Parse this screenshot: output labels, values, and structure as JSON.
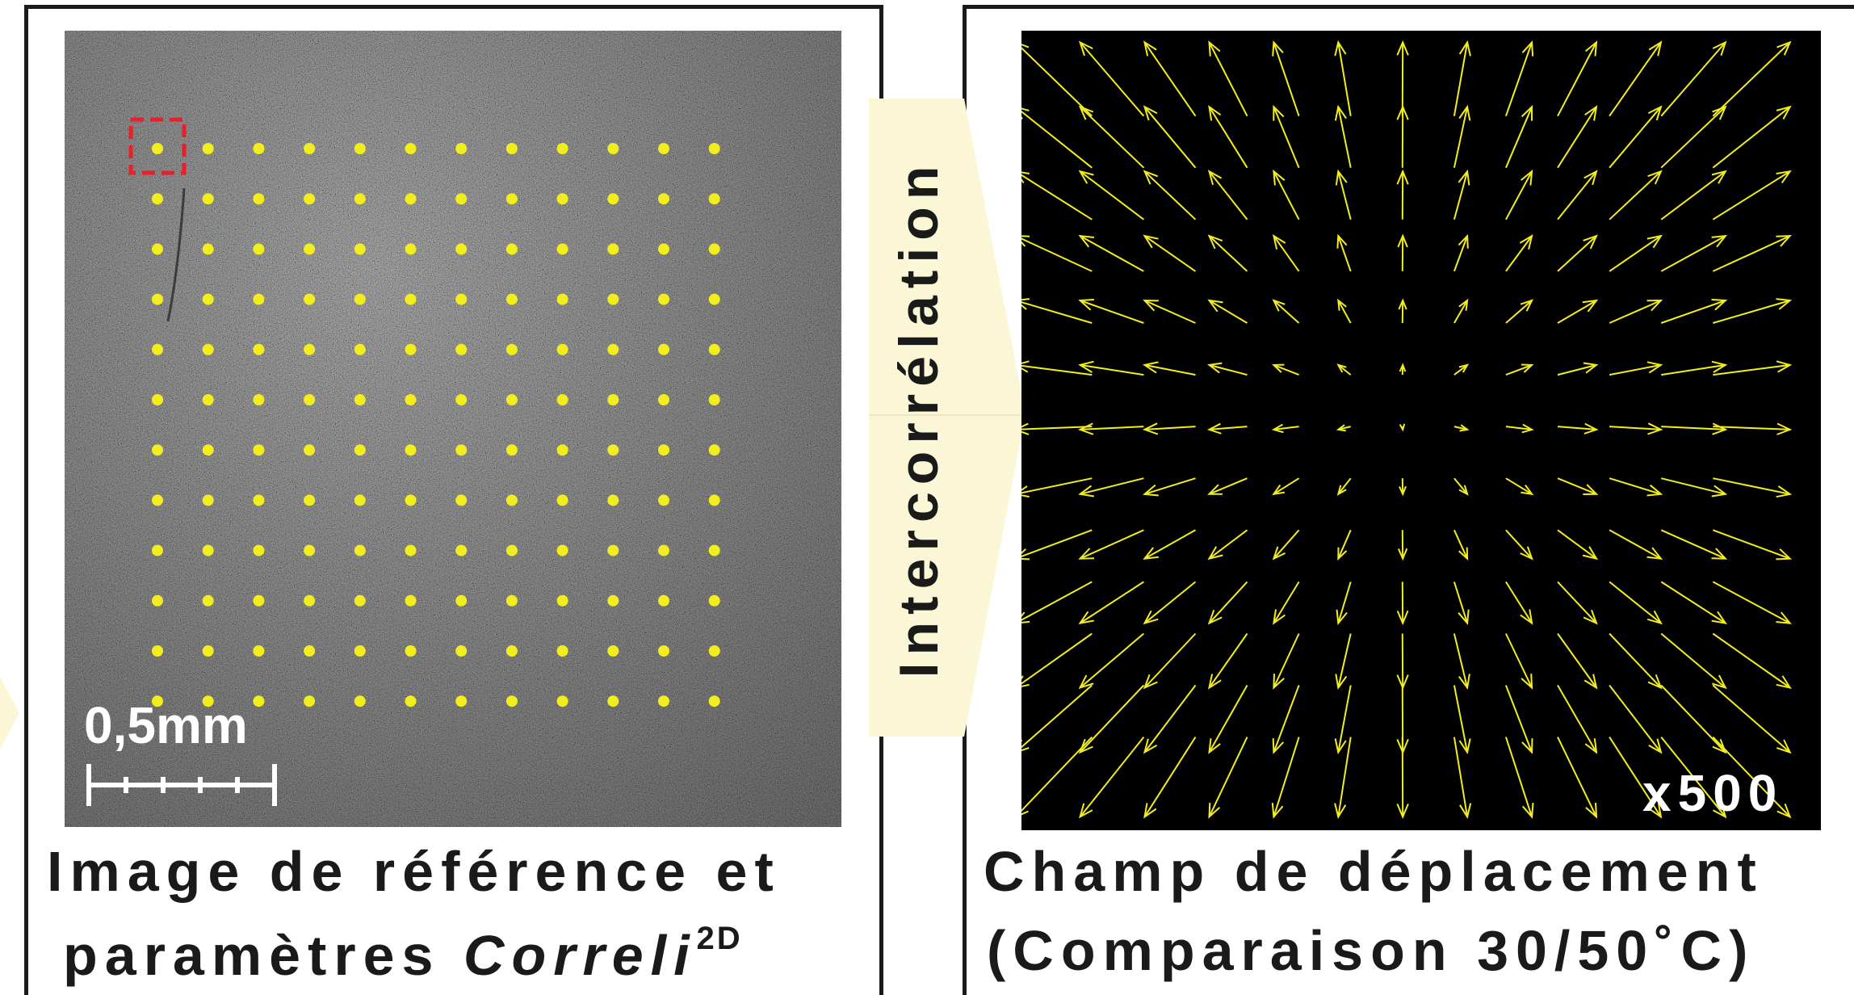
{
  "left_panel": {
    "caption_line1": "Image de référence et",
    "caption_line2_prefix": "paramètres ",
    "caption_italic": "Correli",
    "caption_superscript": "2D",
    "scale_bar_label": "0,5mm",
    "grid": {
      "rows": 12,
      "cols": 12,
      "dot_color": "#f2ee1e",
      "roi_marker_color": "#e8202a"
    }
  },
  "connector": {
    "label": "Intercorrélation",
    "fill_color": "#fbf7d6"
  },
  "right_panel": {
    "caption_line1": "Champ de déplacement",
    "caption_line2": "(Comparaison 30/50˚C)",
    "magnification_label": "x500",
    "arrow_color": "#f2ee1e",
    "field": {
      "rows": 13,
      "cols": 13
    }
  },
  "colors": {
    "frame": "#1a1a1a",
    "speckle_bg": "#5c5c5c",
    "field_bg": "#000000"
  }
}
